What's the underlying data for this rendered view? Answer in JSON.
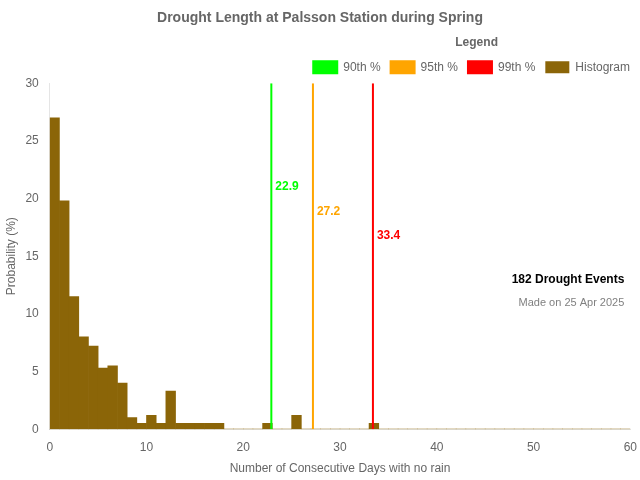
{
  "chart_data": {
    "type": "histogram",
    "title": "Drought Length at Palsson Station during Spring",
    "xlabel": "Number of Consecutive Days with no rain",
    "ylabel": "Probability (%)",
    "xlim": [
      0,
      60
    ],
    "ylim": [
      0,
      30
    ],
    "xticks": [
      0,
      10,
      20,
      30,
      40,
      50,
      60
    ],
    "yticks": [
      0,
      5,
      10,
      15,
      20,
      25,
      30
    ],
    "grid": false,
    "legend": "upper right",
    "legend_title": "Legend",
    "bins": [
      0,
      1,
      2,
      3,
      4,
      5,
      6,
      7,
      8,
      9,
      10,
      11,
      12,
      13,
      14,
      15,
      16,
      17,
      18,
      19,
      20,
      21,
      22,
      23,
      24,
      25,
      26,
      27,
      28,
      29,
      30,
      31,
      32,
      33,
      34,
      35,
      36,
      37,
      38,
      39,
      40,
      41,
      42,
      43,
      44,
      45,
      46,
      47,
      48,
      49,
      50,
      51,
      52,
      53,
      54,
      55,
      56,
      57,
      58,
      59,
      60
    ],
    "series": [
      {
        "name": "Histogram",
        "color": "#8B6508",
        "values": [
          27.0,
          19.8,
          11.5,
          8.0,
          7.2,
          5.3,
          5.5,
          4.0,
          1.0,
          0.5,
          1.2,
          0.5,
          3.3,
          0.5,
          0.5,
          0.5,
          0.5,
          0.5,
          0.0,
          0.0,
          0.0,
          0.0,
          0.5,
          0.0,
          0.0,
          1.2,
          0.0,
          0.0,
          0.0,
          0.0,
          0.0,
          0.0,
          0.0,
          0.5,
          0.0,
          0.0,
          0.0,
          0.0,
          0.0,
          0.0,
          0.0,
          0.0,
          0.0,
          0.0,
          0.0,
          0.0,
          0.0,
          0.0,
          0.0,
          0.0,
          0.0,
          0.0,
          0.0,
          0.0,
          0.0,
          0.0,
          0.0,
          0.0,
          0.0,
          0.0
        ]
      }
    ],
    "percentile_lines": [
      {
        "name": "90th %",
        "x": 22.9,
        "color": "#00FF00"
      },
      {
        "name": "95th %",
        "x": 27.2,
        "color": "#FFA500"
      },
      {
        "name": "99th %",
        "x": 33.4,
        "color": "#FF0000"
      }
    ],
    "annotations": [
      "182 Drought Events",
      "Made on 25 Apr 2025"
    ]
  }
}
